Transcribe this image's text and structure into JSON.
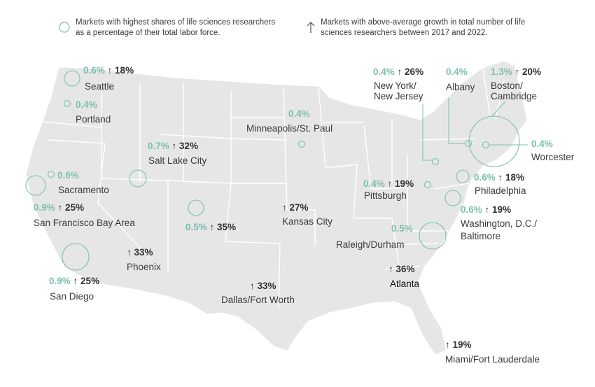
{
  "legend": {
    "circle_text": "Markets with highest shares of life sciences researchers as a percentage of their total labor force.",
    "arrow_text": "Markets with above-average growth in total number of life sciences researchers between 2017 and 2022."
  },
  "colors": {
    "map_fill": "#e6e6e6",
    "state_lines": "#ffffff",
    "circle": "#7cbfae",
    "pct_text": "#7cbfae"
  },
  "markets": {
    "seattle": {
      "share": "0.6%",
      "growth": "↑ 18%",
      "name": "Seattle"
    },
    "portland": {
      "share": "0.4%",
      "name": "Portland"
    },
    "sacramento": {
      "share": "0.6%",
      "name": "Sacramento"
    },
    "sf": {
      "share": "0.9%",
      "growth": "↑ 25%",
      "name": "San Francisco Bay Area"
    },
    "sandiego": {
      "share": "0.9%",
      "growth": "↑ 25%",
      "name": "San Diego"
    },
    "saltlake": {
      "share": "0.7%",
      "growth": "↑ 32%",
      "name": "Salt Lake City"
    },
    "phoenix": {
      "growth": "↑ 33%",
      "name": "Phoenix"
    },
    "denver": {
      "share": "0.5%",
      "growth": "↑ 35%"
    },
    "minneapolis": {
      "share": "0.4%",
      "name": "Minneapolis/St. Paul"
    },
    "kansas": {
      "growth": "↑ 27%",
      "name": "Kansas City"
    },
    "dallas": {
      "growth": "↑ 33%",
      "name": "Dallas/Fort Worth"
    },
    "pittsburgh": {
      "share": "0.4%",
      "growth": "↑ 19%",
      "name": "Pittsburgh"
    },
    "raleigh": {
      "share": "0.5%",
      "name": "Raleigh/Durham"
    },
    "atlanta": {
      "growth": "↑ 36%",
      "name": "Atlanta"
    },
    "miami": {
      "growth": "↑ 19%",
      "name": "Miami/Fort Lauderdale"
    },
    "ny": {
      "share": "0.4%",
      "growth": "↑ 26%",
      "name1": "New York/",
      "name2": "New Jersey"
    },
    "albany": {
      "share": "0.4%",
      "name": "Albany"
    },
    "boston": {
      "share": "1.3%",
      "growth": "↑ 20%",
      "name1": "Boston/",
      "name2": "Cambridge"
    },
    "worcester": {
      "share": "0.4%",
      "name": "Worcester"
    },
    "philadelphia": {
      "share": "0.6%",
      "growth": "↑ 18%",
      "name": "Philadelphia"
    },
    "washington": {
      "share": "0.6%",
      "growth": "↑ 19%",
      "name1": "Washington, D.C./",
      "name2": "Baltimore"
    }
  }
}
